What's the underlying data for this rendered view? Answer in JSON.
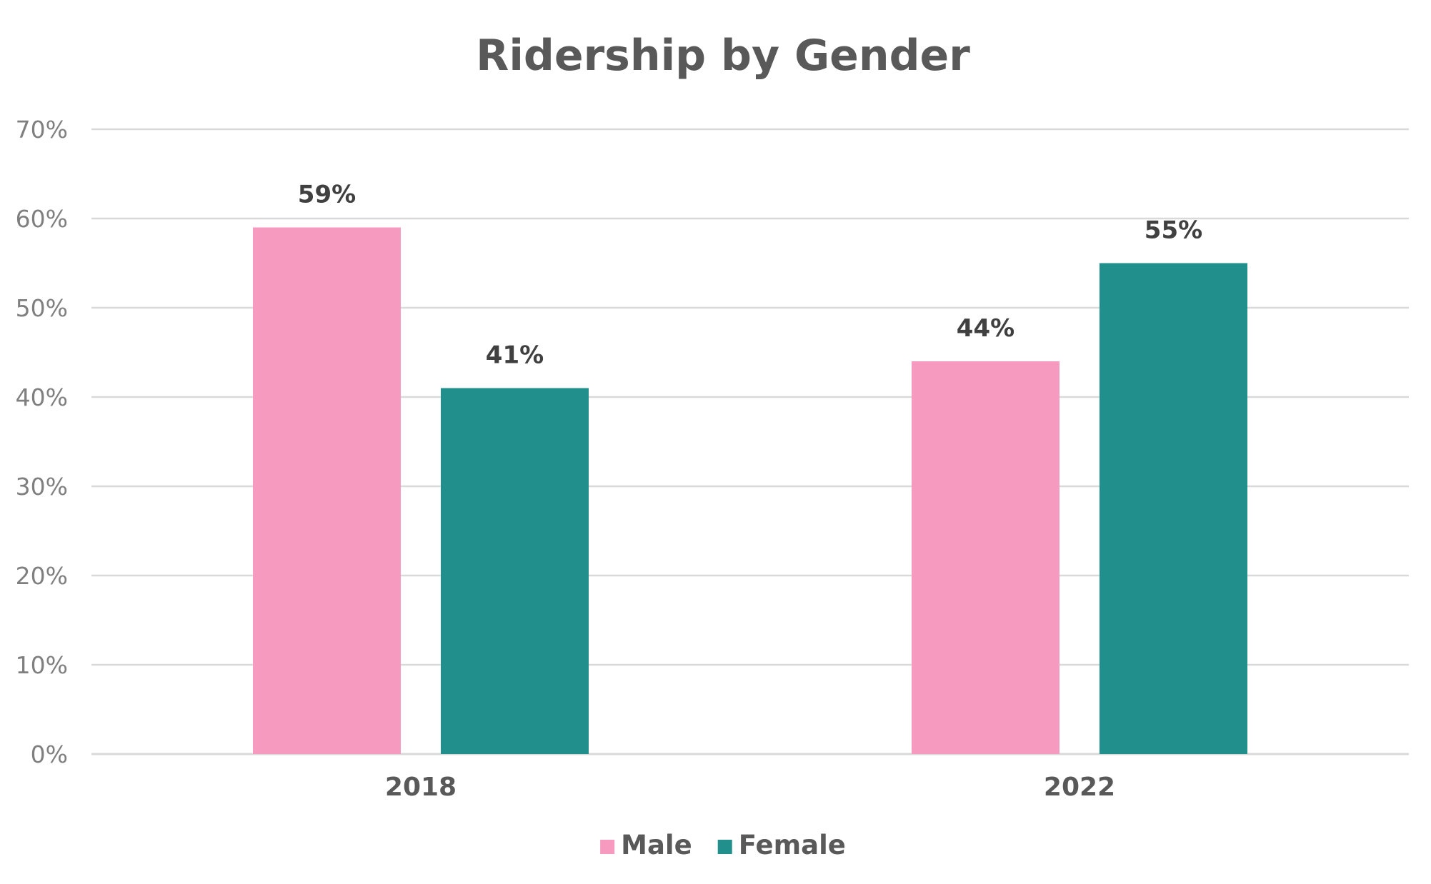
{
  "chart_data": {
    "type": "bar",
    "title": "Ridership by Gender",
    "xlabel": "",
    "ylabel": "",
    "categories": [
      "2018",
      "2022"
    ],
    "series": [
      {
        "name": "Male",
        "color": "#f79ac0",
        "values": [
          59,
          44
        ],
        "labels": [
          "59%",
          "44%"
        ]
      },
      {
        "name": "Female",
        "color": "#21908d",
        "values": [
          41,
          55
        ],
        "labels": [
          "41%",
          "55%"
        ]
      }
    ],
    "ylim": [
      0,
      70
    ],
    "yticks": [
      0,
      10,
      20,
      30,
      40,
      50,
      60,
      70
    ],
    "ytick_labels": [
      "0%",
      "10%",
      "20%",
      "30%",
      "40%",
      "50%",
      "60%",
      "70%"
    ],
    "grid": true,
    "legend": "bottom"
  }
}
